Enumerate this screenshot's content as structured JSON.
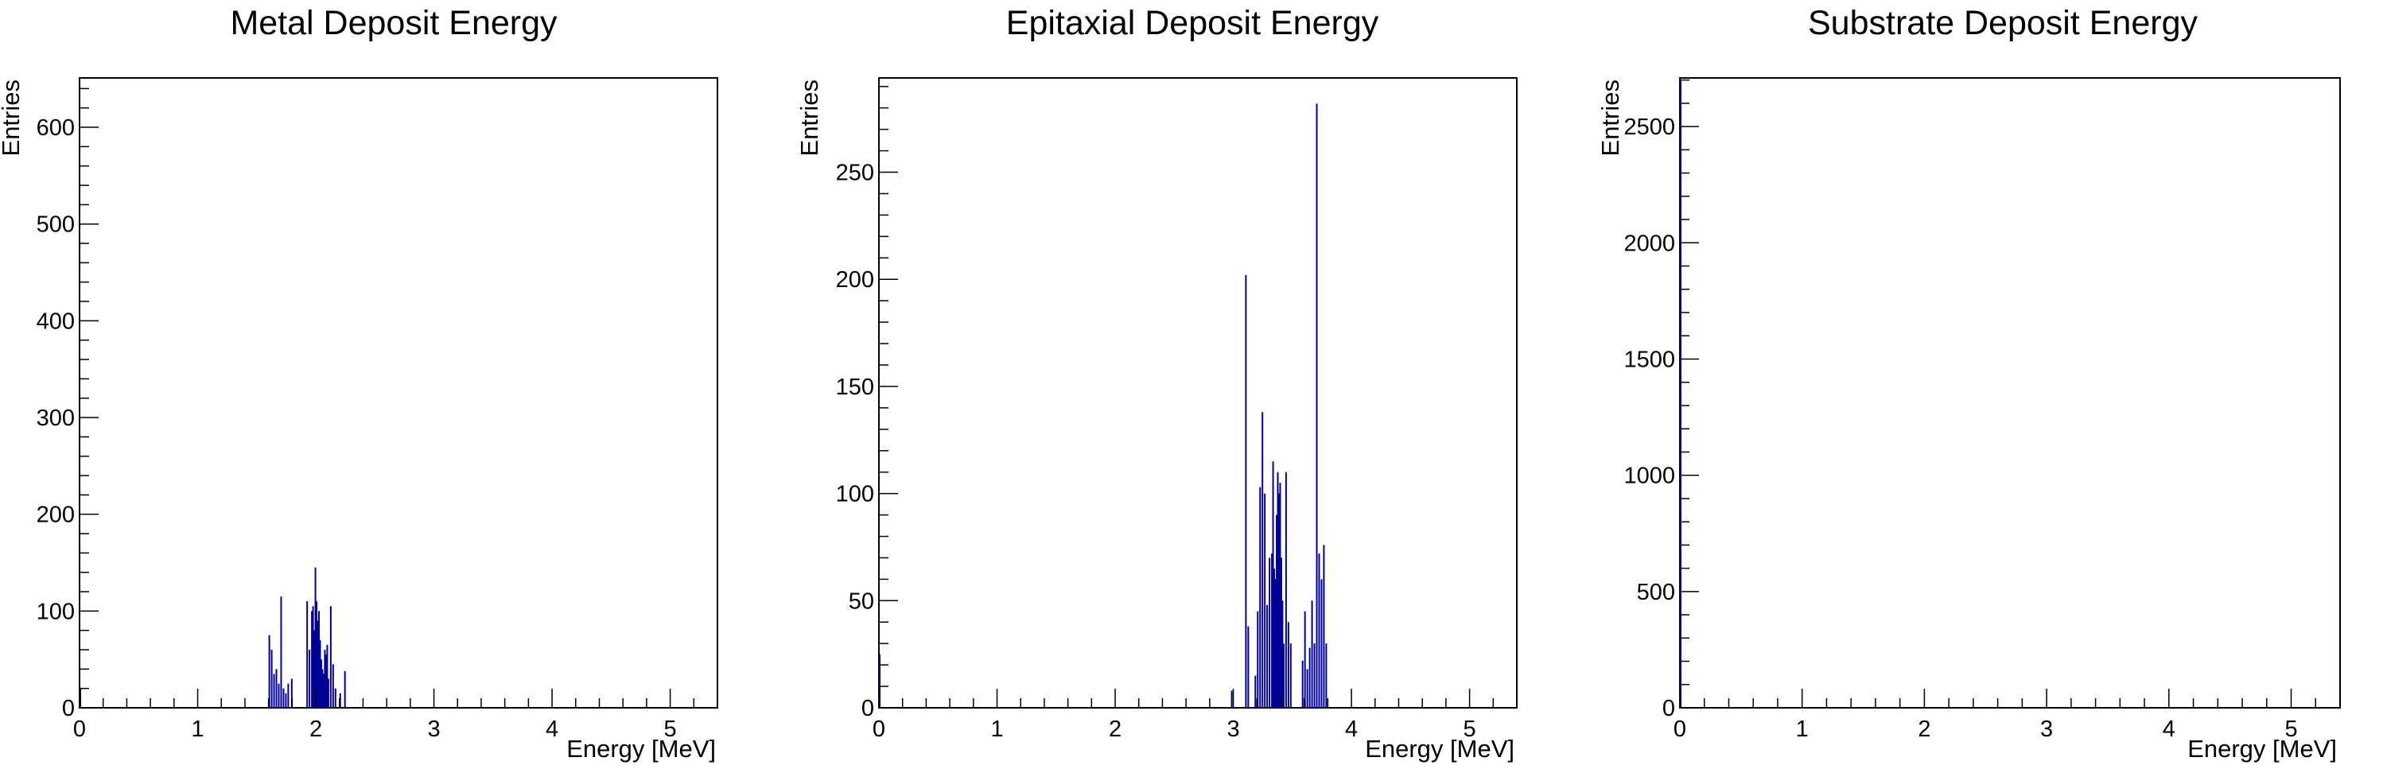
{
  "chart_data": [
    {
      "type": "bar",
      "title": "Metal Deposit Energy",
      "xlabel": "Energy [MeV]",
      "ylabel": "Entries",
      "xlim": [
        0,
        5.4
      ],
      "ylim": [
        0,
        651
      ],
      "xticks": [
        0,
        1,
        2,
        3,
        4,
        5
      ],
      "yticks": [
        0,
        100,
        200,
        300,
        400,
        500,
        600
      ],
      "xticklabels": [
        "0",
        "1",
        "2",
        "3",
        "4",
        "5"
      ],
      "yticklabels": [
        "0",
        "100",
        "200",
        "300",
        "400",
        "500",
        "600"
      ],
      "grid": false,
      "legend": "none",
      "color": "#000099",
      "x": [
        0.0,
        1.6,
        1.62,
        1.64,
        1.66,
        1.68,
        1.7,
        1.72,
        1.74,
        1.76,
        1.79,
        1.92,
        1.94,
        1.96,
        1.97,
        1.98,
        1.99,
        2.0,
        2.01,
        2.02,
        2.03,
        2.04,
        2.05,
        2.06,
        2.07,
        2.08,
        2.09,
        2.1,
        2.12,
        2.14,
        2.16,
        2.2,
        2.24
      ],
      "values": [
        20,
        75,
        60,
        35,
        40,
        25,
        115,
        20,
        15,
        25,
        30,
        110,
        60,
        100,
        105,
        80,
        145,
        110,
        90,
        100,
        70,
        50,
        40,
        35,
        60,
        55,
        65,
        30,
        105,
        45,
        20,
        15,
        38
      ]
    },
    {
      "type": "bar",
      "title": "Epitaxial Deposit Energy",
      "xlabel": "Energy [MeV]",
      "ylabel": "Entries",
      "xlim": [
        0,
        5.4
      ],
      "ylim": [
        0,
        294
      ],
      "xticks": [
        0,
        1,
        2,
        3,
        4,
        5
      ],
      "yticks": [
        0,
        50,
        100,
        150,
        200,
        250
      ],
      "xticklabels": [
        "0",
        "1",
        "2",
        "3",
        "4",
        "5"
      ],
      "yticklabels": [
        "0",
        "50",
        "100",
        "150",
        "200",
        "250"
      ],
      "grid": false,
      "legend": "none",
      "color": "#000099",
      "x": [
        0.0,
        2.98,
        3.1,
        3.12,
        3.18,
        3.2,
        3.22,
        3.24,
        3.26,
        3.28,
        3.3,
        3.32,
        3.33,
        3.34,
        3.35,
        3.36,
        3.37,
        3.38,
        3.39,
        3.4,
        3.41,
        3.42,
        3.44,
        3.46,
        3.48,
        3.58,
        3.6,
        3.62,
        3.64,
        3.66,
        3.68,
        3.7,
        3.72,
        3.74,
        3.76,
        3.78
      ],
      "values": [
        25,
        8,
        202,
        38,
        15,
        45,
        103,
        138,
        100,
        48,
        70,
        72,
        115,
        65,
        60,
        90,
        110,
        100,
        105,
        70,
        50,
        30,
        110,
        40,
        30,
        22,
        45,
        18,
        28,
        50,
        30,
        282,
        72,
        60,
        76,
        30
      ]
    },
    {
      "type": "bar",
      "title": "Substrate Deposit Energy",
      "xlabel": "Energy [MeV]",
      "ylabel": "Entries",
      "xlim": [
        0,
        5.4
      ],
      "ylim": [
        0,
        2709
      ],
      "xticks": [
        0,
        1,
        2,
        3,
        4,
        5
      ],
      "yticks": [
        0,
        500,
        1000,
        1500,
        2000,
        2500
      ],
      "xticklabels": [
        "0",
        "1",
        "2",
        "3",
        "4",
        "5"
      ],
      "yticklabels": [
        "0",
        "500",
        "1000",
        "1500",
        "2000",
        "2500"
      ],
      "grid": false,
      "legend": "none",
      "color": "#000099",
      "x": [
        0.0
      ],
      "values": [
        2700
      ]
    }
  ]
}
